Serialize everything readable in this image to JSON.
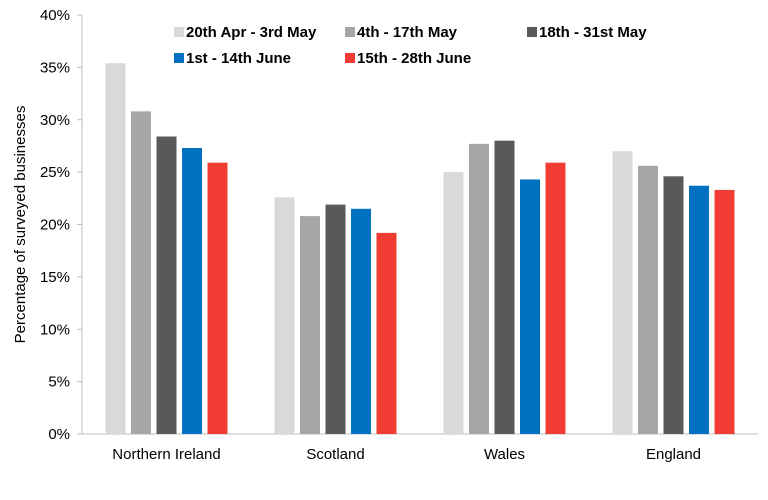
{
  "chart_data": {
    "type": "bar",
    "title": "",
    "xlabel": "",
    "ylabel": "Percentage of surveyed businesses",
    "categories": [
      "Northern Ireland",
      "Scotland",
      "Wales",
      "England"
    ],
    "ylim": [
      0,
      40
    ],
    "yticks": [
      "0%",
      "5%",
      "10%",
      "15%",
      "20%",
      "25%",
      "30%",
      "35%",
      "40%"
    ],
    "grid": false,
    "legend_position": "top",
    "series": [
      {
        "name": "20th Apr - 3rd May",
        "color": "#d9d9d9",
        "values": [
          35.4,
          22.6,
          25.0,
          27.0
        ]
      },
      {
        "name": "4th - 17th May",
        "color": "#a6a6a6",
        "values": [
          30.8,
          20.8,
          27.7,
          25.6
        ]
      },
      {
        "name": "18th - 31st May",
        "color": "#595959",
        "values": [
          28.4,
          21.9,
          28.0,
          24.6
        ]
      },
      {
        "name": "1st - 14th June",
        "color": "#0070c0",
        "values": [
          27.3,
          21.5,
          24.3,
          23.7
        ]
      },
      {
        "name": "15th - 28th June",
        "color": "#f03c32",
        "values": [
          25.9,
          19.2,
          25.9,
          23.3
        ]
      }
    ]
  }
}
